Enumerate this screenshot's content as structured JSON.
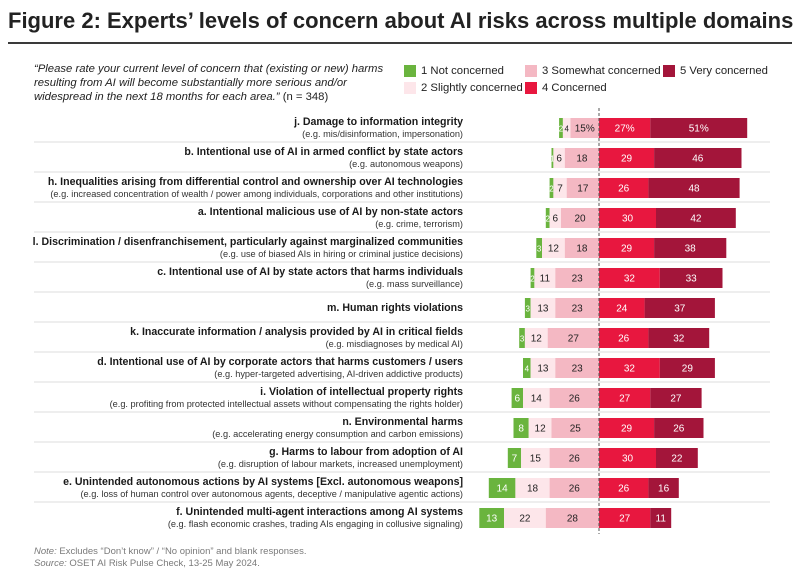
{
  "title": "Figure 2: Experts’ levels of concern about AI risks across multiple domains",
  "question": "“Please rate your current level of concern that (existing or new) harms resulting from AI will become substantially more serious and/or widespread in the next 18 months for each area.”",
  "sample": "(n = 348)",
  "note_label": "Note:",
  "note_text": "Excludes “Don’t know” / “No opinion” and blank responses.",
  "source_label": "Source:",
  "source_text": "OSET AI Risk Pulse Check, 13-25 May 2024.",
  "colors": {
    "not_concerned": "#6ab43e",
    "slightly": "#fde6ea",
    "somewhat": "#f4b8c3",
    "concerned": "#e8173f",
    "very": "#a3153a",
    "divider": "#555555",
    "row_rule": "#bbbbbb"
  },
  "chart_data": {
    "type": "bar",
    "layout": "diverging-stacked-horizontal",
    "legend_position": "top-right",
    "legend": [
      "1 Not concerned",
      "2 Slightly concerned",
      "3 Somewhat concerned",
      "4 Concerned",
      "5 Very concerned"
    ],
    "series_keys": [
      "not_concerned",
      "slightly",
      "somewhat",
      "concerned",
      "very"
    ],
    "categories": [
      {
        "label": "j. Damage to information integrity",
        "sub": "(e.g. mis/disinformation, impersonation)",
        "values": [
          2,
          4,
          15,
          27,
          51
        ],
        "labels": [
          "2",
          "4",
          "15%",
          "27%",
          "51%"
        ]
      },
      {
        "label": "b. Intentional use of AI in armed conflict by state actors",
        "sub": "(e.g. autonomous weapons)",
        "values": [
          1,
          6,
          18,
          29,
          46
        ],
        "labels": [
          "1",
          "6",
          "18",
          "29",
          "46"
        ]
      },
      {
        "label": "h. Inequalities arising from differential control and ownership over AI technologies",
        "sub": "(e.g. increased concentration of wealth / power among individuals, corporations and other institutions)",
        "values": [
          2,
          7,
          17,
          26,
          48
        ],
        "labels": [
          "2",
          "7",
          "17",
          "26",
          "48"
        ]
      },
      {
        "label": "a. Intentional malicious use of AI by non-state actors",
        "sub": "(e.g. crime, terrorism)",
        "values": [
          2,
          6,
          20,
          30,
          42
        ],
        "labels": [
          "2",
          "6",
          "20",
          "30",
          "42"
        ]
      },
      {
        "label": "l. Discrimination / disenfranchisement, particularly against marginalized communities",
        "sub": "(e.g. use of biased AIs in hiring or criminal justice decisions)",
        "values": [
          3,
          12,
          18,
          29,
          38
        ],
        "labels": [
          "3",
          "12",
          "18",
          "29",
          "38"
        ]
      },
      {
        "label": "c. Intentional use of AI by state actors that harms individuals",
        "sub": "(e.g. mass surveillance)",
        "values": [
          2,
          11,
          23,
          32,
          33
        ],
        "labels": [
          "2",
          "11",
          "23",
          "32",
          "33"
        ]
      },
      {
        "label": "m. Human rights violations",
        "sub": "",
        "values": [
          3,
          13,
          23,
          24,
          37
        ],
        "labels": [
          "3",
          "13",
          "23",
          "24",
          "37"
        ]
      },
      {
        "label": "k. Inaccurate information / analysis provided by AI in critical fields",
        "sub": "(e.g. misdiagnoses by medical AI)",
        "values": [
          3,
          12,
          27,
          26,
          32
        ],
        "labels": [
          "3",
          "12",
          "27",
          "26",
          "32"
        ]
      },
      {
        "label": "d. Intentional use of AI by corporate actors that harms customers / users",
        "sub": "(e.g. hyper-targeted advertising, AI-driven addictive products)",
        "values": [
          4,
          13,
          23,
          32,
          29
        ],
        "labels": [
          "4",
          "13",
          "23",
          "32",
          "29"
        ]
      },
      {
        "label": "i. Violation of intellectual property rights",
        "sub": "(e.g. profiting from protected intellectual assets without compensating the rights holder)",
        "values": [
          6,
          14,
          26,
          27,
          27
        ],
        "labels": [
          "6",
          "14",
          "26",
          "27",
          "27"
        ]
      },
      {
        "label": "n. Environmental harms",
        "sub": "(e.g. accelerating energy consumption and carbon emissions)",
        "values": [
          8,
          12,
          25,
          29,
          26
        ],
        "labels": [
          "8",
          "12",
          "25",
          "29",
          "26"
        ]
      },
      {
        "label": "g. Harms to labour from adoption of AI",
        "sub": "(e.g. disruption of labour markets, increased unemployment)",
        "values": [
          7,
          15,
          26,
          30,
          22
        ],
        "labels": [
          "7",
          "15",
          "26",
          "30",
          "22"
        ]
      },
      {
        "label": "e. Unintended autonomous actions by AI systems [Excl. autonomous weapons]",
        "sub": "(e.g. loss of human control over autonomous agents, deceptive / manipulative agentic actions)",
        "values": [
          14,
          18,
          26,
          26,
          16
        ],
        "labels": [
          "14",
          "18",
          "26",
          "26",
          "16"
        ]
      },
      {
        "label": "f. Unintended multi-agent interactions among AI systems",
        "sub": "(e.g. flash economic crashes, trading AIs engaging in collusive signaling)",
        "values": [
          13,
          22,
          28,
          27,
          11
        ],
        "labels": [
          "13",
          "22",
          "28",
          "27",
          "11"
        ]
      }
    ]
  }
}
